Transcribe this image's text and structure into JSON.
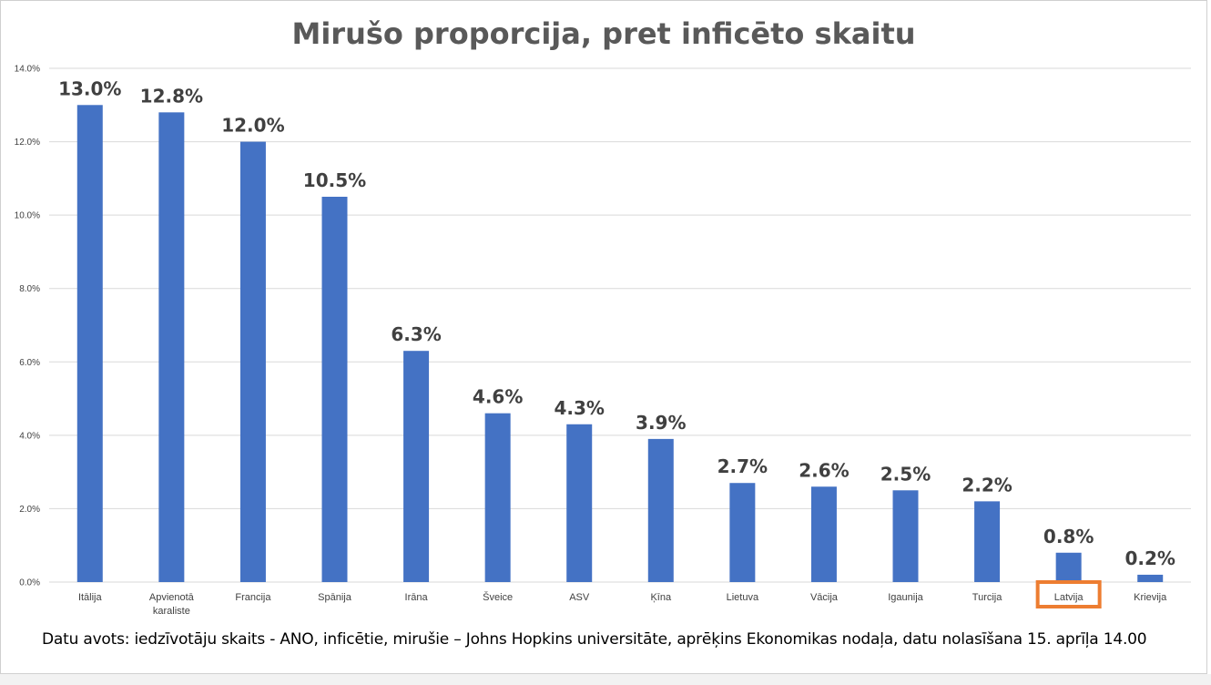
{
  "colors": {
    "bar": "#4472c4",
    "highlight_box": "#ed7d31",
    "gridline": "#d9d9d9"
  },
  "highlight_category": "Latvija",
  "source_note": "Datu avots: iedzīvotāju skaits - ANO, inficētie, mirušie – Johns Hopkins universitāte, aprēķins Ekonomikas nodaļa, datu nolasīšana 15. aprīļa 14.00",
  "chart_data": {
    "type": "bar",
    "title": "Mirušo proporcija, pret inficēto skaitu",
    "xlabel": "",
    "ylabel": "",
    "ylim": [
      0,
      14
    ],
    "yticks": [
      "0.0%",
      "2.0%",
      "4.0%",
      "6.0%",
      "8.0%",
      "10.0%",
      "12.0%",
      "14.0%"
    ],
    "grid": true,
    "categories": [
      [
        "Itālija"
      ],
      [
        "Apvienotā",
        "karaliste"
      ],
      [
        "Francija"
      ],
      [
        "Spānija"
      ],
      [
        "Irāna"
      ],
      [
        "Šveice"
      ],
      [
        "ASV"
      ],
      [
        "Ķīna"
      ],
      [
        "Lietuva"
      ],
      [
        "Vācija"
      ],
      [
        "Igaunija"
      ],
      [
        "Turcija"
      ],
      [
        "Latvija"
      ],
      [
        "Krievija"
      ]
    ],
    "values": [
      13.0,
      12.8,
      12.0,
      10.5,
      6.3,
      4.6,
      4.3,
      3.9,
      2.7,
      2.6,
      2.5,
      2.2,
      0.8,
      0.2
    ],
    "data_labels": [
      "13.0%",
      "12.8%",
      "12.0%",
      "10.5%",
      "6.3%",
      "4.6%",
      "4.3%",
      "3.9%",
      "2.7%",
      "2.6%",
      "2.5%",
      "2.2%",
      "0.8%",
      "0.2%"
    ]
  }
}
